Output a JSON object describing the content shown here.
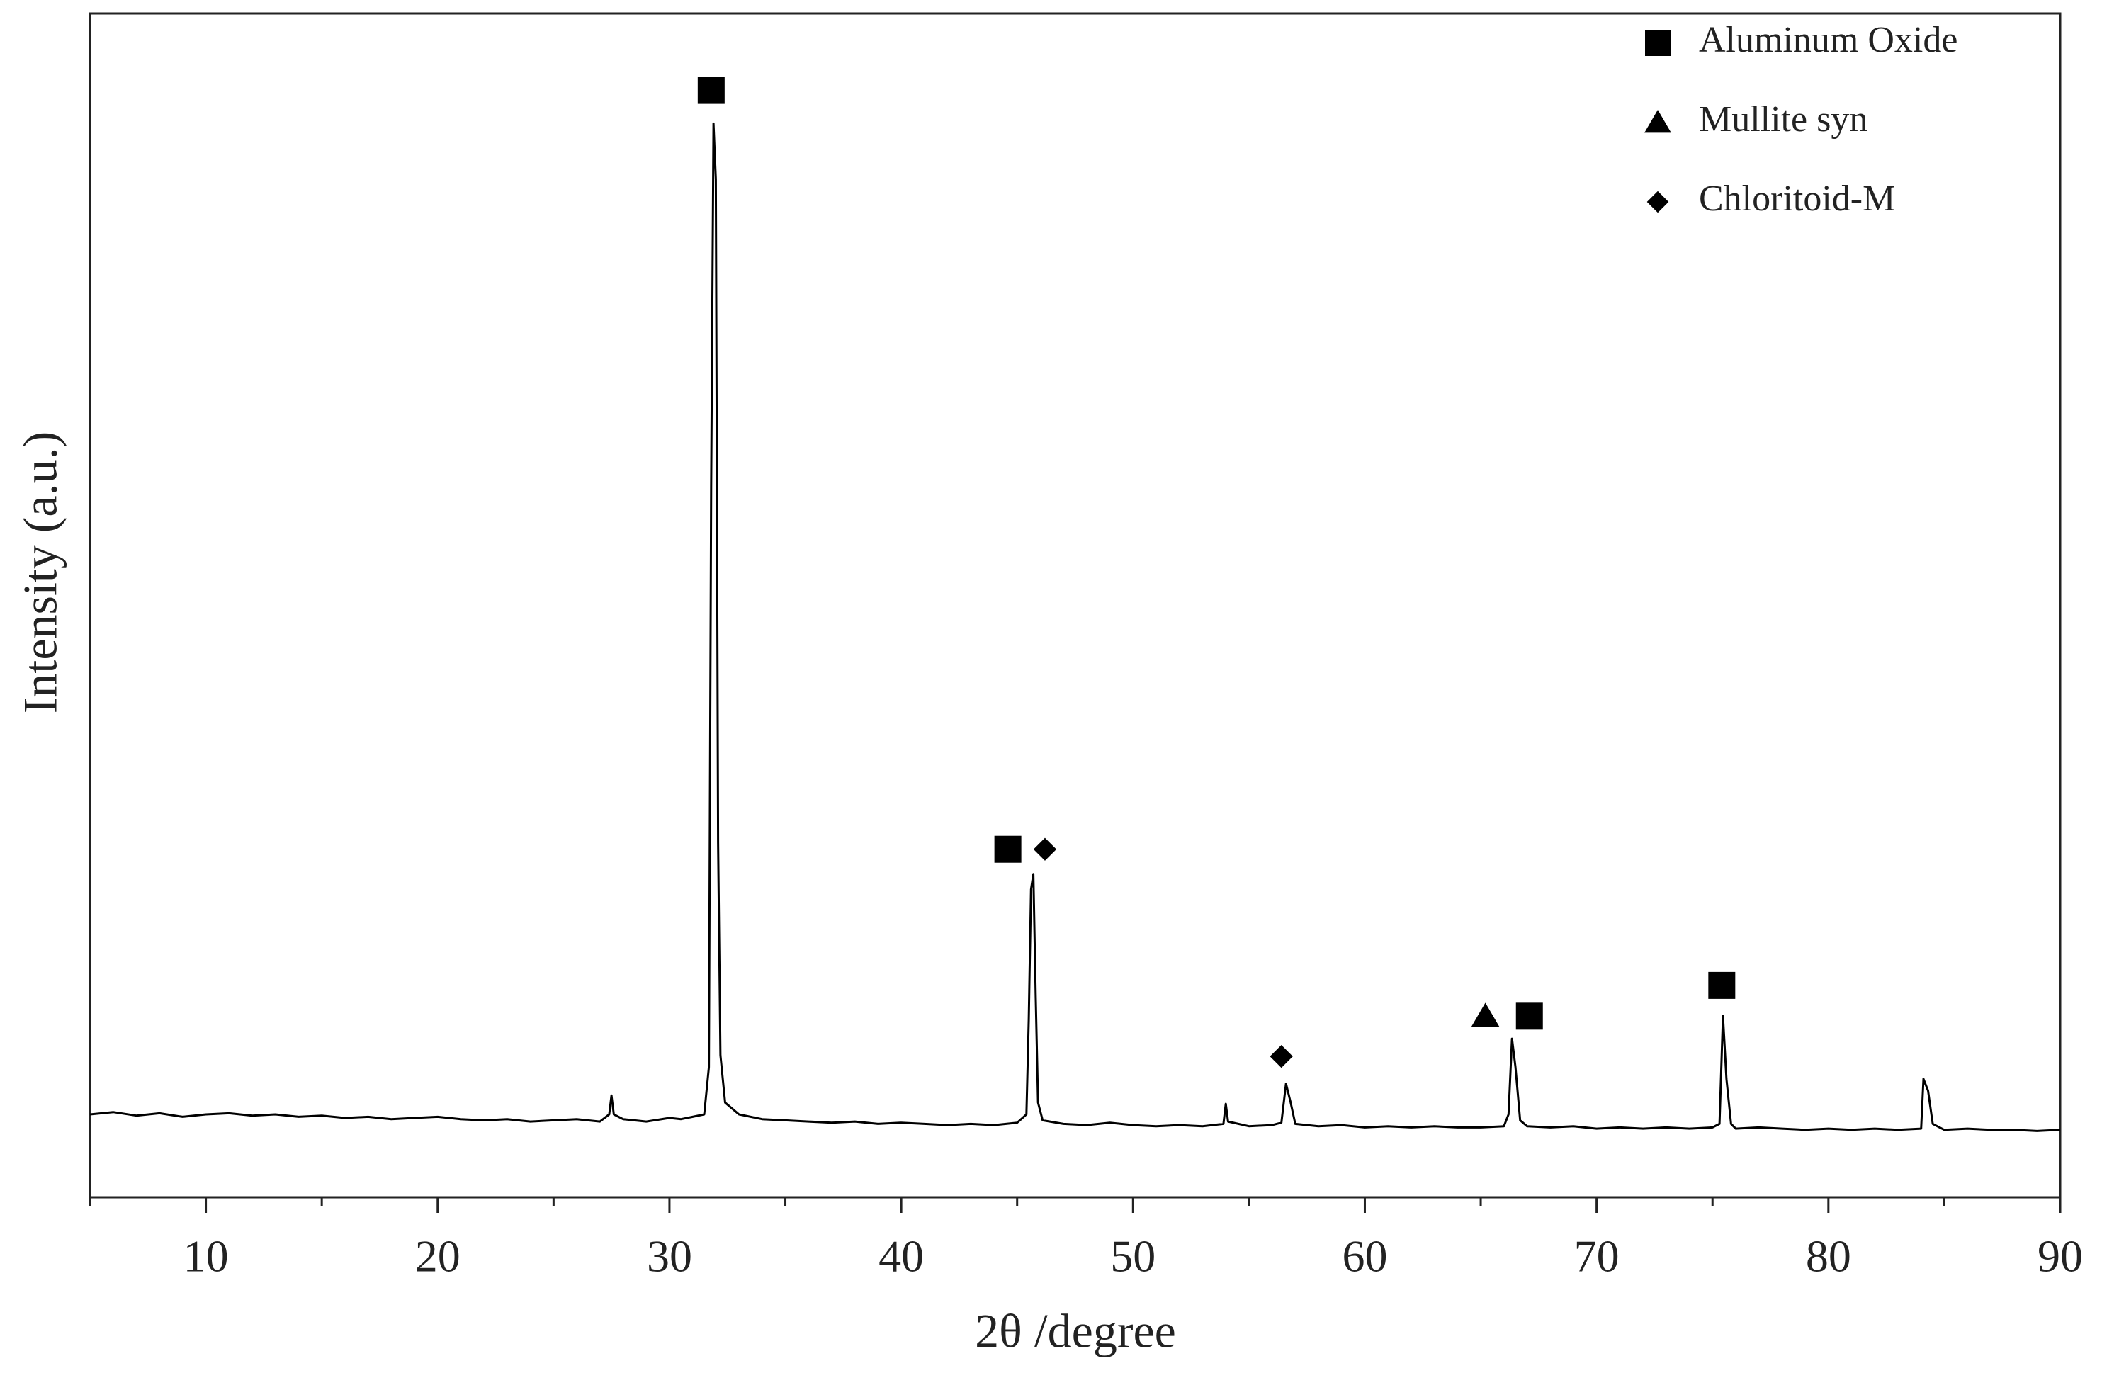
{
  "chart_data": {
    "type": "line",
    "xlabel": "2θ /degree",
    "ylabel": "Intensity (a.u.)",
    "color": "#000000",
    "x": [
      5,
      6,
      7,
      8,
      9,
      10,
      11,
      12,
      13,
      14,
      15,
      16,
      17,
      18,
      19,
      20,
      21,
      22,
      23,
      24,
      25,
      26,
      27,
      27.4,
      27.5,
      27.6,
      28,
      29,
      30,
      30.5,
      31,
      31.5,
      31.7,
      31.8,
      31.9,
      32.0,
      32.1,
      32.2,
      32.4,
      33,
      34,
      35,
      36,
      37,
      38,
      39,
      40,
      41,
      42,
      43,
      44,
      45,
      45.4,
      45.5,
      45.6,
      45.7,
      45.8,
      45.9,
      46.1,
      47,
      48,
      49,
      50,
      51,
      52,
      53,
      53.9,
      54.0,
      54.1,
      55,
      56,
      56.4,
      56.6,
      56.8,
      57,
      58,
      59,
      60,
      61,
      62,
      63,
      64,
      65,
      66,
      66.2,
      66.35,
      66.5,
      66.7,
      67,
      68,
      69,
      70,
      71,
      72,
      73,
      74,
      75,
      75.3,
      75.45,
      75.6,
      75.8,
      76,
      77,
      78,
      79,
      80,
      81,
      82,
      83,
      84,
      84.1,
      84.3,
      84.5,
      85,
      86,
      87,
      88,
      89,
      90
    ],
    "values": [
      70,
      72,
      69,
      71,
      68,
      70,
      71,
      69,
      70,
      68,
      69,
      67,
      68,
      66,
      67,
      68,
      66,
      65,
      66,
      64,
      65,
      66,
      64,
      70,
      86,
      70,
      66,
      64,
      67,
      66,
      68,
      70,
      110,
      600,
      907,
      860,
      300,
      120,
      80,
      70,
      66,
      65,
      64,
      63,
      64,
      62,
      63,
      62,
      61,
      62,
      61,
      63,
      70,
      150,
      260,
      273,
      170,
      80,
      65,
      62,
      61,
      63,
      61,
      60,
      61,
      60,
      62,
      79,
      64,
      60,
      61,
      63,
      96,
      80,
      62,
      60,
      61,
      59,
      60,
      59,
      60,
      59,
      59,
      60,
      70,
      134,
      110,
      65,
      60,
      59,
      60,
      58,
      59,
      58,
      59,
      58,
      59,
      62,
      153,
      100,
      62,
      58,
      59,
      58,
      57,
      58,
      57,
      58,
      57,
      58,
      100,
      90,
      62,
      57,
      58,
      57,
      57,
      56,
      57
    ],
    "xlim": [
      5,
      90
    ],
    "ylim": [
      0,
      1000
    ],
    "xticks": [
      10,
      20,
      30,
      40,
      50,
      60,
      70,
      80,
      90
    ],
    "xminorticks": [
      5,
      15,
      25,
      35,
      45,
      55,
      65,
      75,
      85
    ],
    "legend": [
      {
        "name": "Aluminum Oxide",
        "marker": "square"
      },
      {
        "name": "Mullite syn",
        "marker": "triangle"
      },
      {
        "name": "Chloritoid-M",
        "marker": "diamond"
      }
    ],
    "legend_position": "upper right",
    "annotations": [
      {
        "marker": "square",
        "x": 31.8,
        "y": 935
      },
      {
        "marker": "square",
        "x": 44.6,
        "y": 294
      },
      {
        "marker": "diamond",
        "x": 46.2,
        "y": 294
      },
      {
        "marker": "diamond",
        "x": 56.4,
        "y": 119
      },
      {
        "marker": "triangle",
        "x": 65.2,
        "y": 153
      },
      {
        "marker": "square",
        "x": 67.1,
        "y": 153
      },
      {
        "marker": "square",
        "x": 75.4,
        "y": 179
      }
    ]
  }
}
